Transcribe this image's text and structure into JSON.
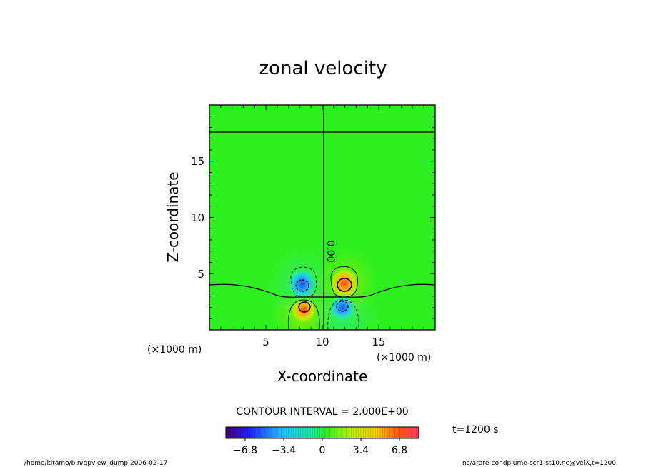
{
  "chart_data": {
    "type": "contour",
    "title": "zonal velocity",
    "xlabel": "X-coordinate",
    "ylabel": "Z-coordinate",
    "x_scale_note": "(×1000 m)",
    "y_scale_note": "(×1000 m)",
    "xlim": [
      0,
      20
    ],
    "ylim": [
      0,
      20
    ],
    "x_ticks": [
      "5",
      "10",
      "15"
    ],
    "y_ticks": [
      "5",
      "10",
      "15"
    ],
    "contour_interval_label": "CONTOUR INTERVAL = 2.000E+00",
    "contour_label": "0.00",
    "time_label": "t=1200 s",
    "colorbar": {
      "min": -8.5,
      "max": 8.5,
      "ticks": [
        "−6.8",
        "−3.4",
        "0",
        "3.4",
        "6.8"
      ],
      "tick_values": [
        -6.8,
        -3.4,
        0,
        3.4,
        6.8
      ]
    },
    "features": [
      {
        "name": "upper-left negative lobe",
        "x": 8.2,
        "z": 4.0,
        "sign": "negative"
      },
      {
        "name": "upper-right positive lobe",
        "x": 12.0,
        "z": 4.0,
        "sign": "positive"
      },
      {
        "name": "lower-left positive lobe",
        "x": 8.4,
        "z": 2.0,
        "sign": "positive"
      },
      {
        "name": "lower-right negative lobe",
        "x": 11.7,
        "z": 2.0,
        "sign": "negative"
      }
    ]
  },
  "footer": {
    "left": "/home/kitamo/bin/gpview_dump  2006-02-17",
    "right": "nc/arare-condplume-scr1-st10.nc@VelX,t=1200"
  }
}
